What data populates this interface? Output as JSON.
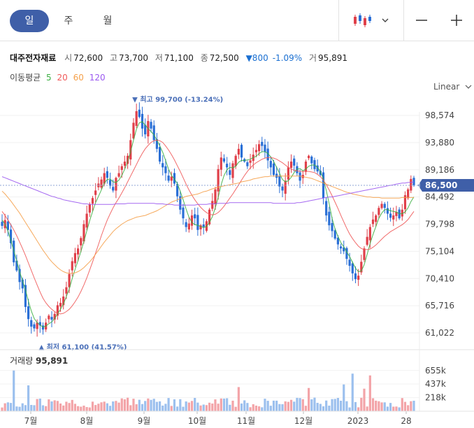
{
  "tabs": [
    {
      "label": "일",
      "active": true
    },
    {
      "label": "주",
      "active": false
    },
    {
      "label": "월",
      "active": false
    }
  ],
  "tools": {
    "chart_type_icon": "candlestick-icon",
    "dropdown_icon": "chevron-down-icon",
    "minus_icon": "minus-icon",
    "plus_icon": "plus-icon"
  },
  "stock": {
    "name": "대주전자재료",
    "open_label": "시",
    "open": "72,600",
    "high_label": "고",
    "high": "73,700",
    "low_label": "저",
    "low": "71,100",
    "close_label": "종",
    "close": "72,500",
    "change": "▼800",
    "change_pct": "-1.09%",
    "volume_label": "거",
    "volume": "95,891"
  },
  "moving_average": {
    "label": "이동평균",
    "periods": [
      "5",
      "20",
      "60",
      "120"
    ],
    "colors": [
      "#3cb043",
      "#f05a5a",
      "#f5a04a",
      "#9b59f0"
    ]
  },
  "scale_label": "Linear",
  "current_price": "86,500",
  "colors": {
    "up": "#e0404a",
    "down": "#2a6fd6",
    "accent": "#3f5fa8",
    "price_tag": "#3f5fa8"
  },
  "volume_panel": {
    "label": "거래량",
    "value": "95,891"
  },
  "chart_data": {
    "type": "candlestick",
    "y_axis": {
      "ticks": [
        "98,574",
        "93,880",
        "89,186",
        "84,492",
        "79,798",
        "75,104",
        "70,410",
        "65,716",
        "61,022"
      ],
      "ylim": [
        61022,
        98574
      ]
    },
    "volume_axis": {
      "ticks": [
        "655k",
        "437k",
        "218k"
      ]
    },
    "x_axis": {
      "ticks": [
        "7월",
        "8월",
        "9월",
        "10월",
        "11월",
        "12월",
        "2023",
        "28"
      ]
    },
    "annotations": {
      "high": {
        "text": "▼ 최고 99,700 (-13.24%)",
        "value": 99700
      },
      "low": {
        "text": "▲ 최저 61,100 (41.57%)",
        "value": 61100
      }
    },
    "close_series": [
      79500,
      80500,
      78800,
      76500,
      73200,
      71800,
      69800,
      68700,
      65500,
      63400,
      62100,
      61800,
      62800,
      62300,
      61600,
      62800,
      64000,
      63300,
      64300,
      65800,
      66200,
      67300,
      68900,
      71200,
      73400,
      74800,
      75600,
      77400,
      79800,
      81600,
      83200,
      84300,
      85600,
      86800,
      87500,
      88600,
      87800,
      86400,
      85600,
      87800,
      88600,
      89800,
      90600,
      91600,
      94300,
      97300,
      99300,
      98300,
      96300,
      95300,
      97600,
      96300,
      94300,
      92800,
      90600,
      89600,
      88600,
      87300,
      88000,
      86800,
      84600,
      82300,
      80800,
      79300,
      79900,
      81300,
      80800,
      78800,
      79600,
      79300,
      80300,
      82300,
      83800,
      85800,
      89300,
      91300,
      90600,
      89600,
      88300,
      90300,
      91600,
      92800,
      91300,
      90600,
      89800,
      90800,
      91800,
      92600,
      93600,
      93300,
      92300,
      90800,
      89600,
      88300,
      87800,
      86300,
      85600,
      87300,
      89600,
      90600,
      89900,
      88600,
      87300,
      88300,
      90600,
      91600,
      90300,
      89300,
      88900,
      88300,
      84300,
      81300,
      79600,
      78600,
      77300,
      76300,
      75600,
      75100,
      73800,
      72600,
      71300,
      70300,
      70900,
      73300,
      75600,
      77600,
      79300,
      80600,
      81300,
      82600,
      83300,
      82600,
      81600,
      80900,
      81300,
      81900,
      80800,
      82300,
      84800,
      85800,
      87600,
      86500
    ],
    "ma5": [
      80500,
      79800,
      78600,
      77000,
      75200,
      73500,
      71600,
      70000,
      68500,
      66500,
      64800,
      63500,
      62800,
      62400,
      62000,
      62200,
      62600,
      62900,
      63500,
      64300,
      65100,
      66000,
      67300,
      68600,
      70400,
      72000,
      73500,
      75100,
      76800,
      78600,
      80400,
      82000,
      83500,
      84600,
      85700,
      86900,
      87500,
      87600,
      87100,
      87000,
      87400,
      88200,
      89300,
      90600,
      92300,
      94300,
      96200,
      97300,
      97500,
      96900,
      96300,
      95800,
      95200,
      94300,
      93300,
      92200,
      90800,
      89300,
      88200,
      87600,
      86800,
      85500,
      84000,
      82400,
      81000,
      80100,
      79700,
      79600,
      79400,
      79200,
      79400,
      80100,
      81100,
      82600,
      84400,
      86600,
      88200,
      89200,
      89600,
      89500,
      89800,
      90500,
      90800,
      90800,
      90900,
      91000,
      91300,
      91500,
      92000,
      92300,
      92300,
      92000,
      91400,
      90600,
      89600,
      88600,
      87500,
      87100,
      87300,
      87900,
      88700,
      89300,
      89400,
      89000,
      89300,
      89800,
      90000,
      90000,
      89600,
      88900,
      87600,
      85600,
      83300,
      80800,
      79000,
      77700,
      76600,
      75900,
      75000,
      74200,
      73200,
      72200,
      71600,
      71700,
      72800,
      74600,
      76400,
      78000,
      79400,
      80800,
      81700,
      82300,
      82300,
      82100,
      82000,
      81900,
      81600,
      81600,
      81900,
      82600,
      83700,
      84500
    ],
    "ma20": [
      82000,
      81300,
      80500,
      79700,
      78800,
      77800,
      76700,
      75600,
      74400,
      73100,
      71800,
      70500,
      69300,
      68100,
      67000,
      66200,
      65600,
      65100,
      64700,
      64400,
      64300,
      64400,
      64700,
      65100,
      65700,
      66400,
      67200,
      68200,
      69300,
      70500,
      71900,
      73300,
      74800,
      76300,
      77800,
      79200,
      80500,
      81600,
      82600,
      83500,
      84300,
      85200,
      86100,
      87100,
      88100,
      89100,
      90100,
      91100,
      92000,
      92800,
      93400,
      93900,
      94200,
      94300,
      94200,
      93900,
      93300,
      92600,
      91800,
      90900,
      89900,
      88900,
      87800,
      86700,
      85700,
      84800,
      84000,
      83300,
      82700,
      82200,
      81800,
      81500,
      81400,
      81500,
      81800,
      82300,
      82900,
      83600,
      84300,
      85000,
      85800,
      86600,
      87400,
      88200,
      88900,
      89500,
      90000,
      90400,
      90700,
      91000,
      91200,
      91300,
      91300,
      91200,
      91000,
      90700,
      90400,
      90000,
      89600,
      89300,
      89100,
      89000,
      88900,
      88900,
      88900,
      88900,
      88800,
      88700,
      88400,
      88000,
      87400,
      86600,
      85700,
      84700,
      83600,
      82500,
      81300,
      80200,
      79100,
      78100,
      77300,
      76600,
      76000,
      75600,
      75400,
      75400,
      75500,
      75800,
      76200,
      76700,
      77200,
      77700,
      78100,
      78500,
      78800,
      79100,
      79400,
      79700,
      80100,
      80600,
      81300,
      82000
    ],
    "ma60": [
      85500,
      85000,
      84400,
      83800,
      83100,
      82400,
      81700,
      80900,
      80100,
      79300,
      78500,
      77700,
      76900,
      76100,
      75300,
      74600,
      73900,
      73300,
      72800,
      72300,
      71900,
      71600,
      71400,
      71300,
      71300,
      71400,
      71600,
      71900,
      72300,
      72800,
      73300,
      73900,
      74600,
      75300,
      76000,
      76700,
      77300,
      77900,
      78500,
      79000,
      79400,
      79800,
      80100,
      80400,
      80600,
      80800,
      81000,
      81100,
      81200,
      81300,
      81500,
      81700,
      81900,
      82100,
      82400,
      82700,
      83000,
      83300,
      83600,
      83800,
      84000,
      84200,
      84400,
      84600,
      84700,
      84800,
      84900,
      85000,
      85200,
      85400,
      85500,
      85700,
      85900,
      86000,
      86200,
      86300,
      86400,
      86500,
      86600,
      86700,
      86800,
      86900,
      87100,
      87200,
      87300,
      87400,
      87600,
      87700,
      87800,
      87900,
      88000,
      88000,
      88100,
      88100,
      88100,
      88100,
      88100,
      88100,
      88100,
      88100,
      88100,
      88100,
      88100,
      88000,
      87900,
      87800,
      87700,
      87500,
      87300,
      87100,
      86900,
      86700,
      86500,
      86300,
      86100,
      85900,
      85700,
      85500,
      85300,
      85200,
      85000,
      84900,
      84800,
      84700,
      84600,
      84500,
      84500,
      84400,
      84400,
      84400,
      84300,
      84300,
      84300,
      84300,
      84300,
      84300,
      84300,
      84400,
      84400,
      84400,
      84400,
      84400
    ],
    "ma120": [
      88000,
      87800,
      87600,
      87400,
      87200,
      87000,
      86800,
      86600,
      86400,
      86200,
      86000,
      85800,
      85600,
      85400,
      85200,
      85000,
      84800,
      84600,
      84500,
      84300,
      84200,
      84000,
      83900,
      83800,
      83700,
      83600,
      83500,
      83400,
      83300,
      83300,
      83200,
      83200,
      83200,
      83200,
      83200,
      83200,
      83200,
      83200,
      83200,
      83300,
      83300,
      83300,
      83300,
      83400,
      83400,
      83400,
      83400,
      83400,
      83400,
      83400,
      83400,
      83400,
      83400,
      83300,
      83300,
      83300,
      83200,
      83200,
      83200,
      83100,
      83100,
      83100,
      83100,
      83100,
      83100,
      83100,
      83100,
      83200,
      83200,
      83200,
      83200,
      83300,
      83300,
      83300,
      83400,
      83400,
      83400,
      83400,
      83500,
      83500,
      83500,
      83500,
      83500,
      83500,
      83500,
      83500,
      83500,
      83500,
      83500,
      83500,
      83500,
      83500,
      83500,
      83400,
      83400,
      83400,
      83400,
      83400,
      83400,
      83400,
      83400,
      83500,
      83500,
      83600,
      83700,
      83800,
      83900,
      84000,
      84100,
      84200,
      84300,
      84400,
      84500,
      84500,
      84600,
      84700,
      84800,
      84900,
      85000,
      85100,
      85200,
      85300,
      85400,
      85500,
      85600,
      85700,
      85800,
      85900,
      86000,
      86100,
      86200,
      86300,
      86400,
      86500,
      86600,
      86700,
      86800,
      86900,
      86900,
      87000,
      87000,
      87100
    ]
  }
}
